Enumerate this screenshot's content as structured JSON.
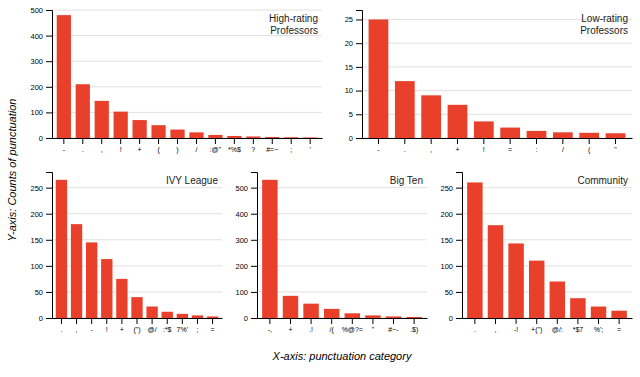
{
  "ylabel": "Y-axis: Counts of punctuation",
  "xlabel": "X-axis: punctuation category",
  "chart_data": [
    {
      "type": "bar",
      "title": "High-rating\nProfessors",
      "categories": [
        "-",
        ".",
        ",",
        "!",
        "+",
        "(",
        ")",
        "/",
        ":@\"",
        "*%$",
        "?",
        "#=~",
        ";",
        "'"
      ],
      "values": [
        480,
        210,
        145,
        103,
        70,
        50,
        33,
        22,
        12,
        8,
        6,
        4,
        3,
        2
      ],
      "color": "#E8402A",
      "ylim": [
        0,
        500
      ],
      "yticks": [
        0,
        100,
        200,
        300,
        400,
        500
      ],
      "grid": true
    },
    {
      "type": "bar",
      "title": "Low-rating\nProfessors",
      "categories": [
        "-",
        ".",
        ",",
        "+",
        "!",
        "=",
        ":",
        "/",
        "(",
        "\""
      ],
      "values": [
        25,
        12,
        9,
        7,
        3.5,
        2.2,
        1.5,
        1.2,
        1.1,
        1.0
      ],
      "color": "#E8402A",
      "ylim": [
        0,
        27
      ],
      "yticks": [
        0,
        5,
        10,
        15,
        20,
        25
      ],
      "grid": true
    },
    {
      "type": "bar",
      "title": "IVY League",
      "categories": [
        ".",
        ",",
        "-",
        "!",
        "+",
        "(\")",
        "@/",
        ":*$",
        "7%'",
        ";",
        "="
      ],
      "values": [
        265,
        180,
        145,
        113,
        75,
        40,
        22,
        12,
        8,
        5,
        3
      ],
      "color": "#E8402A",
      "ylim": [
        0,
        280
      ],
      "yticks": [
        0,
        50,
        100,
        150,
        200,
        250
      ],
      "grid": true
    },
    {
      "type": "bar",
      "title": "Big Ten",
      "categories": [
        "-,",
        "+",
        ".!",
        "/(",
        "%@?=",
        "\"",
        "#~-",
        ".$)"
      ],
      "values": [
        530,
        85,
        55,
        35,
        18,
        10,
        6,
        4
      ],
      "color": "#E8402A",
      "ylim": [
        0,
        560
      ],
      "yticks": [
        0,
        100,
        200,
        300,
        400,
        500
      ],
      "grid": true
    },
    {
      "type": "bar",
      "title": "Community",
      "categories": [
        ".",
        ",",
        "-!",
        "+(\")",
        "@/:",
        "*$7",
        "%';",
        "="
      ],
      "values": [
        260,
        178,
        143,
        110,
        70,
        38,
        22,
        14
      ],
      "color": "#E8402A",
      "ylim": [
        0,
        280
      ],
      "yticks": [
        0,
        50,
        100,
        150,
        200,
        250
      ],
      "grid": true
    }
  ]
}
